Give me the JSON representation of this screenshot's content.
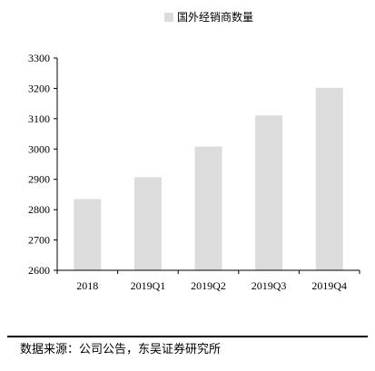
{
  "chart_data": {
    "type": "bar",
    "categories": [
      "2018",
      "2019Q1",
      "2019Q2",
      "2019Q3",
      "2019Q4"
    ],
    "series": [
      {
        "name": "国外经销商数量",
        "values": [
          2835,
          2907,
          3008,
          3111,
          3202
        ]
      }
    ],
    "ylim": [
      2600,
      3300
    ],
    "yticks": [
      2600,
      2700,
      2800,
      2900,
      3000,
      3100,
      3200,
      3300
    ],
    "grid": false,
    "legend_position": "top-center",
    "bar_color": "#dcdcdc",
    "axis_color": "#000000"
  },
  "source_note": "数据来源：公司公告，东吴证券研究所"
}
